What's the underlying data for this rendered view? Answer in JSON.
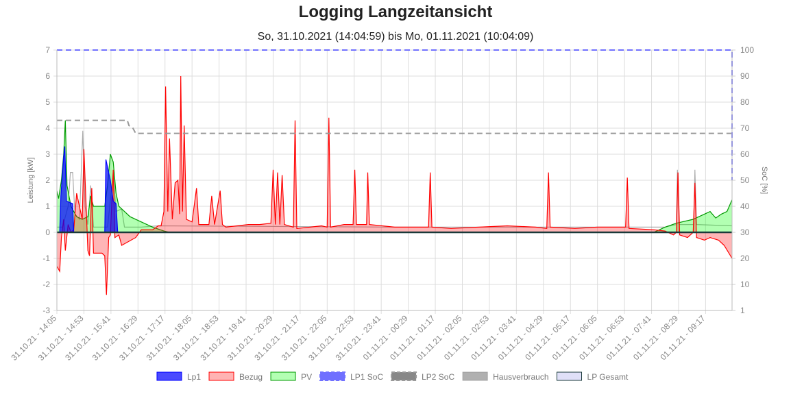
{
  "chart_data": {
    "type": "line",
    "title": "Logging Langzeitansicht",
    "subtitle": "So, 31.10.2021 (14:04:59) bis Mo, 01.11.2021 (10:04:09)",
    "ylabel": "Leistung [kW]",
    "y2label": "SoC [%]",
    "ylim": [
      -3,
      7
    ],
    "y_ticks": [
      "-3",
      "-2",
      "-1",
      "0",
      "1",
      "2",
      "3",
      "4",
      "5",
      "6",
      "7"
    ],
    "y2lim": [
      0,
      100
    ],
    "y2_ticks": [
      "1",
      "10",
      "20",
      "30",
      "40",
      "50",
      "60",
      "70",
      "80",
      "90",
      "100"
    ],
    "x_unit": "minutes since 31.10.21 14:05",
    "xlim": [
      0,
      1199
    ],
    "x_tick_labels": [
      "31.10.21 - 14:05",
      "31.10.21 - 14:53",
      "31.10.21 - 15:41",
      "31.10.21 - 16:29",
      "31.10.21 - 17:17",
      "31.10.21 - 18:05",
      "31.10.21 - 18:53",
      "31.10.21 - 19:41",
      "31.10.21 - 20:29",
      "31.10.21 - 21:17",
      "31.10.21 - 22:05",
      "31.10.21 - 22:53",
      "31.10.21 - 23:41",
      "01.11.21 - 00:29",
      "01.11.21 - 01:17",
      "01.11.21 - 02:05",
      "01.11.21 - 02:53",
      "01.11.21 - 03:41",
      "01.11.21 - 04:29",
      "01.11.21 - 05:17",
      "01.11.21 - 06:05",
      "01.11.21 - 06:53",
      "01.11.21 - 07:41",
      "01.11.21 - 08:29",
      "01.11.21 - 09:17"
    ],
    "grid": true,
    "legend_position": "bottom",
    "series": [
      {
        "name": "Lp1",
        "axis": "left",
        "color": "#0000ff",
        "fill": "rgba(0,0,255,0.7)",
        "legend_fill": "#4a4aff",
        "points": [
          [
            0,
            0
          ],
          [
            5,
            0
          ],
          [
            7,
            1.4
          ],
          [
            12,
            2.9
          ],
          [
            14,
            3.3
          ],
          [
            17,
            1.2
          ],
          [
            28,
            1.1
          ],
          [
            30,
            0
          ],
          [
            85,
            0
          ],
          [
            87,
            2.8
          ],
          [
            95,
            2.0
          ],
          [
            100,
            1.2
          ],
          [
            105,
            1.1
          ],
          [
            108,
            0
          ],
          [
            1199,
            0
          ]
        ]
      },
      {
        "name": "Bezug",
        "axis": "left",
        "color": "#ff0000",
        "fill": "rgba(255,10,13,0.3)",
        "legend_fill": "#ffb3b3",
        "points": [
          [
            0,
            -1.3
          ],
          [
            5,
            -1.5
          ],
          [
            8,
            -0.2
          ],
          [
            12,
            0.5
          ],
          [
            15,
            -0.7
          ],
          [
            20,
            0.3
          ],
          [
            25,
            0
          ],
          [
            30,
            0.1
          ],
          [
            35,
            1.5
          ],
          [
            40,
            1.0
          ],
          [
            45,
            0.5
          ],
          [
            48,
            3.2
          ],
          [
            52,
            1.0
          ],
          [
            55,
            -0.7
          ],
          [
            58,
            -0.9
          ],
          [
            62,
            1.7
          ],
          [
            65,
            -0.8
          ],
          [
            70,
            -0.8
          ],
          [
            80,
            -0.8
          ],
          [
            85,
            -0.9
          ],
          [
            88,
            -2.4
          ],
          [
            92,
            -0.2
          ],
          [
            95,
            -0.1
          ],
          [
            100,
            2.4
          ],
          [
            103,
            -0.2
          ],
          [
            110,
            -0.1
          ],
          [
            115,
            -0.5
          ],
          [
            140,
            -0.2
          ],
          [
            150,
            0.1
          ],
          [
            170,
            0.1
          ],
          [
            180,
            0.25
          ],
          [
            185,
            0.25
          ],
          [
            190,
            0.8
          ],
          [
            193,
            5.6
          ],
          [
            197,
            0.8
          ],
          [
            200,
            3.6
          ],
          [
            205,
            0.5
          ],
          [
            210,
            1.9
          ],
          [
            215,
            2.0
          ],
          [
            218,
            0.7
          ],
          [
            220,
            6.0
          ],
          [
            223,
            0.8
          ],
          [
            226,
            4.1
          ],
          [
            230,
            0.5
          ],
          [
            240,
            0.4
          ],
          [
            248,
            1.7
          ],
          [
            252,
            0.3
          ],
          [
            270,
            0.3
          ],
          [
            275,
            1.4
          ],
          [
            280,
            0.3
          ],
          [
            290,
            1.6
          ],
          [
            294,
            0.3
          ],
          [
            300,
            0.2
          ],
          [
            320,
            0.25
          ],
          [
            340,
            0.3
          ],
          [
            360,
            0.3
          ],
          [
            380,
            0.35
          ],
          [
            384,
            2.4
          ],
          [
            388,
            0.3
          ],
          [
            392,
            2.3
          ],
          [
            396,
            0.3
          ],
          [
            400,
            2.2
          ],
          [
            404,
            0.3
          ],
          [
            420,
            0.2
          ],
          [
            423,
            4.3
          ],
          [
            426,
            0.15
          ],
          [
            450,
            0.2
          ],
          [
            470,
            0.25
          ],
          [
            480,
            0.2
          ],
          [
            483,
            4.4
          ],
          [
            486,
            0.2
          ],
          [
            510,
            0.3
          ],
          [
            526,
            0.3
          ],
          [
            529,
            2.4
          ],
          [
            532,
            0.3
          ],
          [
            550,
            0.3
          ],
          [
            552,
            2.3
          ],
          [
            555,
            0.3
          ],
          [
            600,
            0.2
          ],
          [
            660,
            0.2
          ],
          [
            663,
            2.3
          ],
          [
            666,
            0.2
          ],
          [
            700,
            0.15
          ],
          [
            750,
            0.2
          ],
          [
            800,
            0.25
          ],
          [
            850,
            0.2
          ],
          [
            870,
            0.15
          ],
          [
            873,
            2.3
          ],
          [
            876,
            0.2
          ],
          [
            920,
            0.15
          ],
          [
            960,
            0.2
          ],
          [
            1010,
            0.2
          ],
          [
            1013,
            2.1
          ],
          [
            1016,
            0.15
          ],
          [
            1060,
            0.1
          ],
          [
            1080,
            0.05
          ],
          [
            1095,
            -0.1
          ],
          [
            1100,
            0
          ],
          [
            1103,
            2.3
          ],
          [
            1106,
            -0.1
          ],
          [
            1120,
            -0.2
          ],
          [
            1130,
            0
          ],
          [
            1133,
            1.9
          ],
          [
            1136,
            -0.2
          ],
          [
            1150,
            -0.3
          ],
          [
            1160,
            -0.2
          ],
          [
            1175,
            -0.3
          ],
          [
            1185,
            -0.5
          ],
          [
            1199,
            -1.0
          ]
        ]
      },
      {
        "name": "PV",
        "axis": "left",
        "color": "#009900",
        "fill": "rgba(0,255,0,0.3)",
        "legend_fill": "#b3ffb3",
        "points": [
          [
            0,
            1.6
          ],
          [
            3,
            1.3
          ],
          [
            8,
            2.0
          ],
          [
            12,
            3.0
          ],
          [
            15,
            4.3
          ],
          [
            18,
            1.8
          ],
          [
            25,
            1.0
          ],
          [
            35,
            0.6
          ],
          [
            45,
            0.5
          ],
          [
            55,
            0.6
          ],
          [
            60,
            1.4
          ],
          [
            65,
            1.0
          ],
          [
            75,
            1.0
          ],
          [
            85,
            1.0
          ],
          [
            90,
            1.8
          ],
          [
            95,
            3.0
          ],
          [
            100,
            2.7
          ],
          [
            105,
            1.5
          ],
          [
            110,
            1.0
          ],
          [
            130,
            0.6
          ],
          [
            150,
            0.4
          ],
          [
            170,
            0.2
          ],
          [
            190,
            0.05
          ],
          [
            200,
            0
          ],
          [
            1060,
            0
          ],
          [
            1080,
            0.2
          ],
          [
            1100,
            0.35
          ],
          [
            1130,
            0.5
          ],
          [
            1150,
            0.7
          ],
          [
            1160,
            0.8
          ],
          [
            1170,
            0.55
          ],
          [
            1180,
            0.7
          ],
          [
            1190,
            0.8
          ],
          [
            1199,
            1.25
          ]
        ]
      },
      {
        "name": "LP1 SoC",
        "axis": "right",
        "color": "#7070ff",
        "dashed": true,
        "points": [
          [
            0,
            100
          ],
          [
            1199,
            100
          ],
          [
            1199,
            50
          ]
        ]
      },
      {
        "name": "LP2 SoC",
        "axis": "right",
        "color": "#999999",
        "dashed": true,
        "legend_fill": "#888888",
        "points": [
          [
            0,
            73
          ],
          [
            125,
            73
          ],
          [
            128,
            71
          ],
          [
            135,
            70
          ],
          [
            140,
            68
          ],
          [
            1199,
            68
          ]
        ]
      },
      {
        "name": "Hausverbrauch",
        "axis": "left",
        "color": "rgba(150,150,150,0.8)",
        "legend_fill": "#b0b0b0",
        "points": [
          [
            0,
            0.2
          ],
          [
            10,
            0.2
          ],
          [
            20,
            1.0
          ],
          [
            24,
            2.3
          ],
          [
            28,
            2.3
          ],
          [
            32,
            0.7
          ],
          [
            40,
            0.5
          ],
          [
            46,
            3.9
          ],
          [
            50,
            1.0
          ],
          [
            55,
            0.3
          ],
          [
            60,
            1.8
          ],
          [
            65,
            0.2
          ],
          [
            90,
            0.2
          ],
          [
            100,
            2.3
          ],
          [
            105,
            0.8
          ],
          [
            115,
            0.9
          ],
          [
            120,
            0.2
          ],
          [
            150,
            0.2
          ],
          [
            180,
            0.25
          ],
          [
            600,
            0.2
          ],
          [
            1080,
            0.2
          ],
          [
            1100,
            0.3
          ],
          [
            1102,
            2.4
          ],
          [
            1105,
            0.3
          ],
          [
            1131,
            0.3
          ],
          [
            1133,
            2.4
          ],
          [
            1136,
            0.3
          ],
          [
            1199,
            0.25
          ]
        ]
      },
      {
        "name": "LP Gesamt",
        "axis": "left",
        "color": "#1a3a3a",
        "legend_fill": "#e0e0f8",
        "points": [
          [
            0,
            0
          ],
          [
            1199,
            0
          ]
        ]
      }
    ]
  }
}
